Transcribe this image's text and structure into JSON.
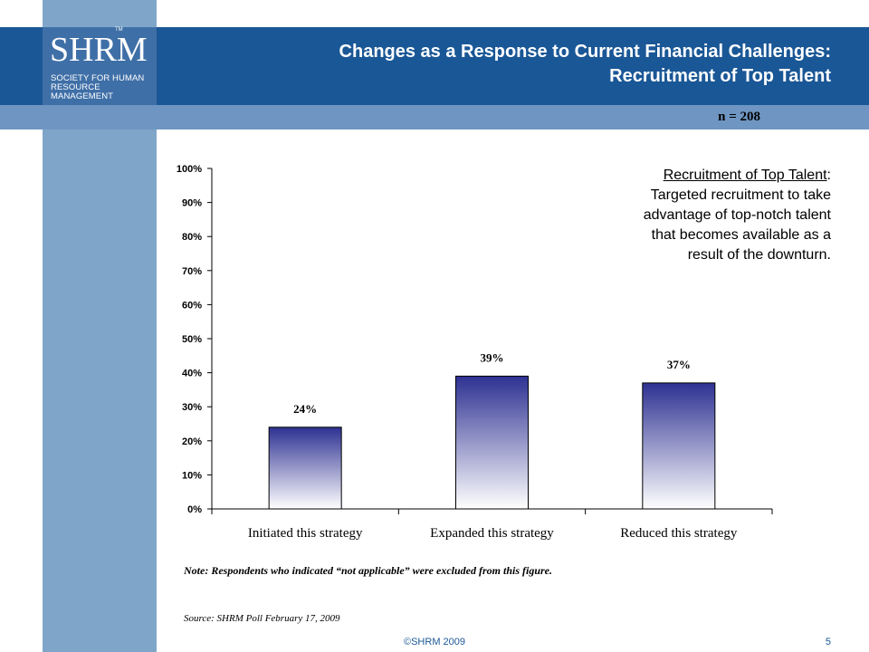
{
  "header": {
    "logo_wordmark": "SHRM",
    "logo_tm": "TM",
    "logo_sub_line1": "SOCIETY FOR HUMAN",
    "logo_sub_line2": "RESOURCE MANAGEMENT",
    "title_line1": "Changes as a Response to Current Financial Challenges:",
    "title_line2": "Recruitment of Top Talent"
  },
  "n_label": "n = 208",
  "callout": {
    "heading": "Recruitment of Top Talent",
    "line1": "Targeted recruitment to take",
    "line2": "advantage of top-notch talent",
    "line3": "that becomes available as a",
    "line4": "result of the downturn."
  },
  "note": "Note: Respondents who indicated “not applicable” were excluded from this figure.",
  "source": "Source: SHRM Poll February 17, 2009",
  "footer": "©SHRM 2009",
  "page_number": "5",
  "colors": {
    "header_blue": "#1a5796",
    "sub_band": "#6f96c2",
    "left_stripe": "#7fa6c9",
    "bar_top": "#2e3192",
    "bar_bottom": "#ffffff"
  },
  "chart_data": {
    "type": "bar",
    "categories": [
      "Initiated this strategy",
      "Expanded this strategy",
      "Reduced this strategy"
    ],
    "values": [
      24,
      39,
      37
    ],
    "data_labels": [
      "24%",
      "39%",
      "37%"
    ],
    "ylim": [
      0,
      100
    ],
    "yticks": [
      "0%",
      "10%",
      "20%",
      "30%",
      "40%",
      "50%",
      "60%",
      "70%",
      "80%",
      "90%",
      "100%"
    ],
    "grid": false,
    "legend": "none"
  }
}
